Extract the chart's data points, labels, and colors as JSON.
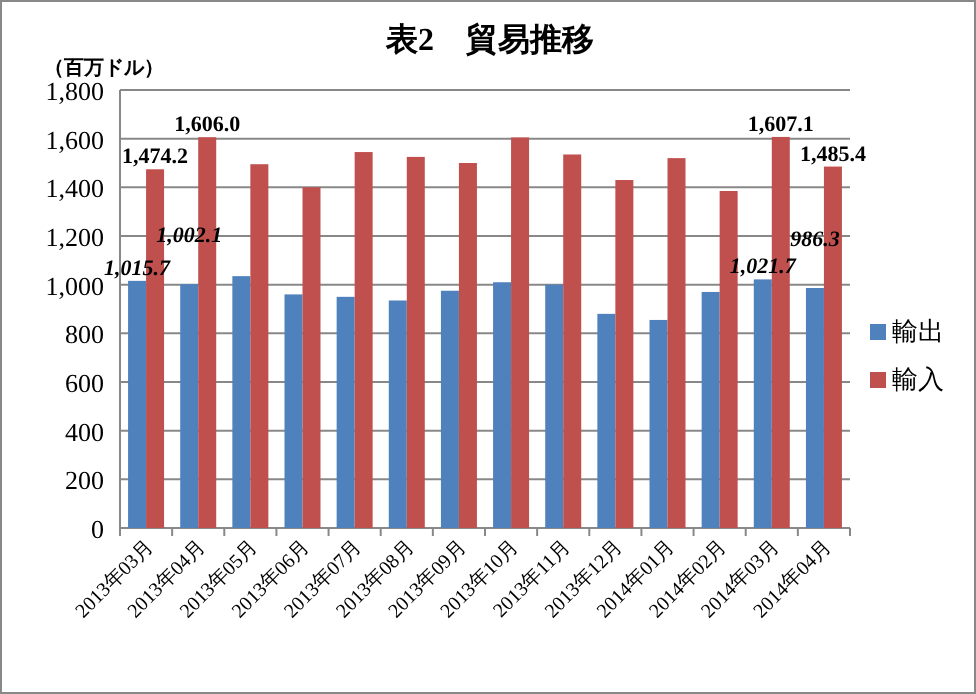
{
  "chart_data": {
    "type": "bar",
    "title": "表2　貿易推移",
    "ylabel": "（百万ドル）",
    "categories": [
      "2013年03月",
      "2013年04月",
      "2013年05月",
      "2013年06月",
      "2013年07月",
      "2013年08月",
      "2013年09月",
      "2013年10月",
      "2013年11月",
      "2013年12月",
      "2014年01月",
      "2014年02月",
      "2014年03月",
      "2014年04月"
    ],
    "series": [
      {
        "name": "輸出",
        "color": "#4f81bd",
        "values": [
          1015.7,
          1002.1,
          1035,
          960,
          950,
          935,
          975,
          1010,
          1000,
          880,
          855,
          970,
          1021.7,
          986.3
        ],
        "value_labels": [
          "1,015.7",
          "1,002.1",
          null,
          null,
          null,
          null,
          null,
          null,
          null,
          null,
          null,
          null,
          "1,021.7",
          "986.3"
        ]
      },
      {
        "name": "輸入",
        "color": "#c0504d",
        "values": [
          1474.2,
          1606.0,
          1495,
          1400,
          1545,
          1525,
          1500,
          1605,
          1535,
          1430,
          1520,
          1385,
          1607.1,
          1485.4
        ],
        "value_labels": [
          "1,474.2",
          "1,606.0",
          null,
          null,
          null,
          null,
          null,
          null,
          null,
          null,
          null,
          null,
          "1,607.1",
          "1,485.4"
        ]
      }
    ],
    "ylim": [
      0,
      1800
    ],
    "yticks": [
      {
        "value": 0,
        "label": "0"
      },
      {
        "value": 200,
        "label": "200"
      },
      {
        "value": 400,
        "label": "400"
      },
      {
        "value": 600,
        "label": "600"
      },
      {
        "value": 800,
        "label": "800"
      },
      {
        "value": 1000,
        "label": "1,000"
      },
      {
        "value": 1200,
        "label": "1,200"
      },
      {
        "value": 1400,
        "label": "1,400"
      },
      {
        "value": 1600,
        "label": "1,600"
      },
      {
        "value": 1800,
        "label": "1,800"
      }
    ],
    "grid": "y",
    "legend": "right"
  }
}
